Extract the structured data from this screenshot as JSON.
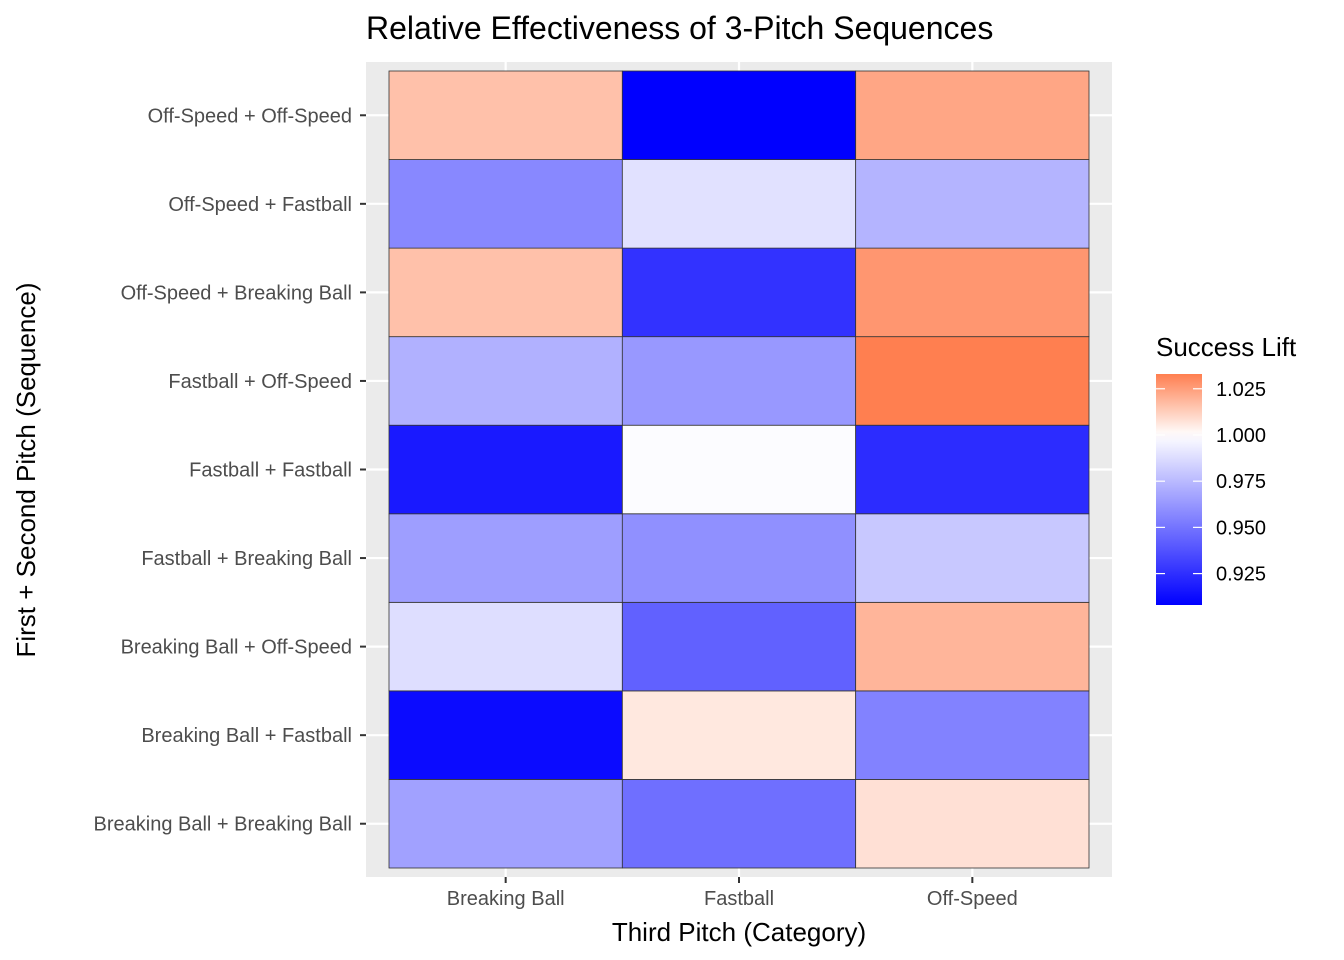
{
  "chart_data": {
    "type": "heatmap",
    "title": "Relative Effectiveness of 3-Pitch Sequences",
    "xlabel": "Third Pitch (Category)",
    "ylabel": "First + Second Pitch (Sequence)",
    "x_categories": [
      "Breaking Ball",
      "Fastball",
      "Off-Speed"
    ],
    "y_categories": [
      "Breaking Ball + Breaking Ball",
      "Breaking Ball + Fastball",
      "Breaking Ball + Off-Speed",
      "Fastball + Breaking Ball",
      "Fastball + Fastball",
      "Fastball + Off-Speed",
      "Off-Speed + Breaking Ball",
      "Off-Speed + Fastball",
      "Off-Speed + Off-Speed"
    ],
    "values": [
      [
        0.966,
        0.948,
        1.008
      ],
      [
        0.912,
        1.006,
        0.955
      ],
      [
        0.988,
        0.943,
        1.019
      ],
      [
        0.965,
        0.96,
        0.98
      ],
      [
        0.917,
        0.999,
        0.924
      ],
      [
        0.972,
        0.963,
        1.033
      ],
      [
        1.016,
        0.926,
        1.027
      ],
      [
        0.957,
        0.989,
        0.973
      ],
      [
        1.016,
        0.908,
        1.023
      ]
    ],
    "legend": {
      "title": "Success Lift",
      "min": 0.908,
      "max": 1.033,
      "ticks": [
        0.925,
        0.95,
        0.975,
        1.0,
        1.025
      ],
      "tick_labels": [
        "0.925",
        "0.950",
        "0.975",
        "1.000",
        "1.025"
      ],
      "low_color": "#0000ff",
      "mid_color": "#ffffff",
      "high_color": "#ff7f50",
      "midpoint": 1.0,
      "position": "right"
    },
    "panel_background": "#ebebeb",
    "grid_color": "#ffffff",
    "tile_border_color": "#333333",
    "grid": true
  }
}
